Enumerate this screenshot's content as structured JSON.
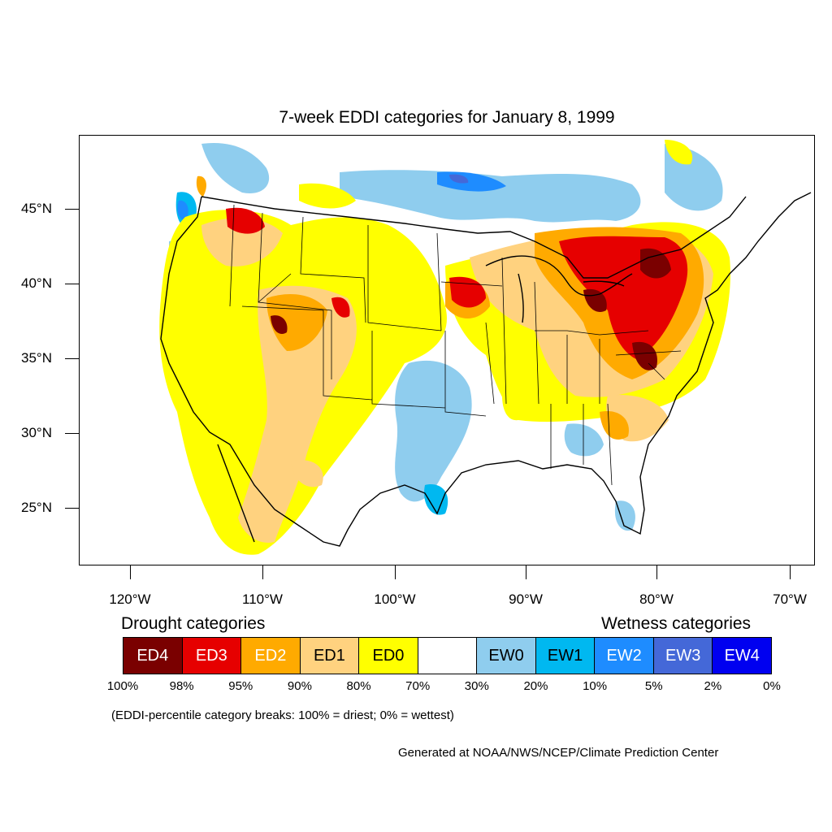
{
  "title": "7-week EDDI categories for January 8, 1999",
  "map": {
    "latitude_labels": [
      "45°N",
      "40°N",
      "35°N",
      "30°N",
      "25°N"
    ],
    "longitude_labels": [
      "120°W",
      "110°W",
      "100°W",
      "90°W",
      "80°W",
      "70°W"
    ],
    "colors": {
      "ED4": "#7a0000",
      "ED3": "#e60000",
      "ED2": "#ffaa00",
      "ED1": "#ffd27f",
      "ED0": "#ffff00",
      "EW0": "#8fcdee",
      "EW1": "#00b8f0",
      "EW2": "#1e8cff",
      "EW3": "#4468d8",
      "EW4": "#0000f0",
      "outline": "#000000"
    }
  },
  "legend": {
    "drought_heading": "Drought categories",
    "wetness_heading": "Wetness categories",
    "categories": [
      {
        "label": "ED4",
        "color": "#7a0000",
        "text_color": "#ffffff"
      },
      {
        "label": "ED3",
        "color": "#e60000",
        "text_color": "#ffffff"
      },
      {
        "label": "ED2",
        "color": "#ffaa00",
        "text_color": "#ffffff"
      },
      {
        "label": "ED1",
        "color": "#ffd27f",
        "text_color": "#000000"
      },
      {
        "label": "ED0",
        "color": "#ffff00",
        "text_color": "#000000"
      },
      {
        "label": "",
        "color": "#ffffff",
        "text_color": "#000000"
      },
      {
        "label": "EW0",
        "color": "#8fcdee",
        "text_color": "#000000"
      },
      {
        "label": "EW1",
        "color": "#00b8f0",
        "text_color": "#000000"
      },
      {
        "label": "EW2",
        "color": "#1e8cff",
        "text_color": "#ffffff"
      },
      {
        "label": "EW3",
        "color": "#4468d8",
        "text_color": "#ffffff"
      },
      {
        "label": "EW4",
        "color": "#0000f0",
        "text_color": "#ffffff"
      }
    ],
    "percentiles": [
      "100%",
      "98%",
      "95%",
      "90%",
      "80%",
      "70%",
      "30%",
      "20%",
      "10%",
      "5%",
      "2%",
      "0%"
    ],
    "note": "(EDDI-percentile category breaks: 100% = driest; 0% = wettest)"
  },
  "credit": "Generated at NOAA/NWS/NCEP/Climate Prediction Center"
}
